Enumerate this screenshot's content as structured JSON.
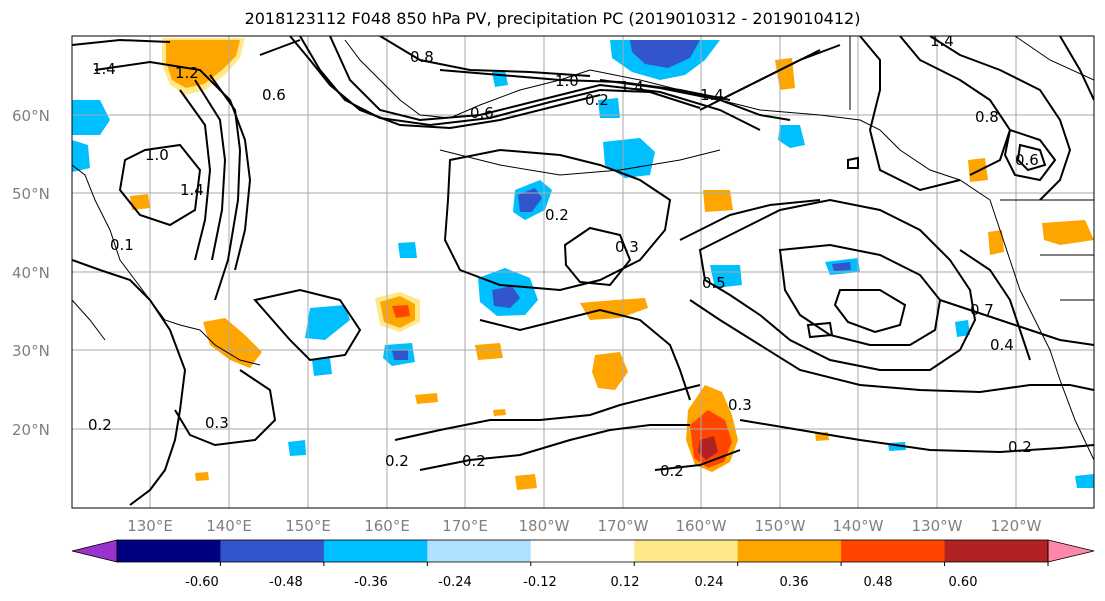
{
  "title": "2018123112 F048 850 hPa PV, precipitation PC (2019010312 - 2019010412)",
  "lat_labels": [
    "60°N",
    "50°N",
    "40°N",
    "30°N",
    "20°N"
  ],
  "lon_labels": [
    "130°E",
    "140°E",
    "150°E",
    "160°E",
    "170°E",
    "180°W",
    "170°W",
    "160°W",
    "150°W",
    "140°W",
    "130°W",
    "120°W"
  ],
  "contour_labels": [
    "1.4",
    "0.8",
    "1.4",
    "1.0",
    "1.4",
    "1.2",
    "0.6",
    "0.6",
    "0.2",
    "0.3",
    "1.0",
    "1.4",
    "0.1",
    "0.2",
    "0.3",
    "0.5",
    "0.7",
    "0.4",
    "0.3",
    "0.2",
    "0.2",
    "0.2",
    "0.2",
    "0.2",
    "0.8",
    "1.4",
    "0.6"
  ],
  "colorbar": {
    "colors": [
      "#9933cc",
      "#000080",
      "#3355cc",
      "#00bfff",
      "#b0e0ff",
      "#ffffff",
      "#ffe88a",
      "#ffa500",
      "#ff4500",
      "#b22222",
      "#ff88aa"
    ],
    "tick_labels": [
      "-0.60",
      "-0.48",
      "-0.36",
      "-0.24",
      "-0.12",
      "0.12",
      "0.24",
      "0.36",
      "0.48",
      "0.60"
    ]
  },
  "colors": {
    "grid": "#aaaaaa",
    "contour": "#000000",
    "coast": "#000000"
  }
}
